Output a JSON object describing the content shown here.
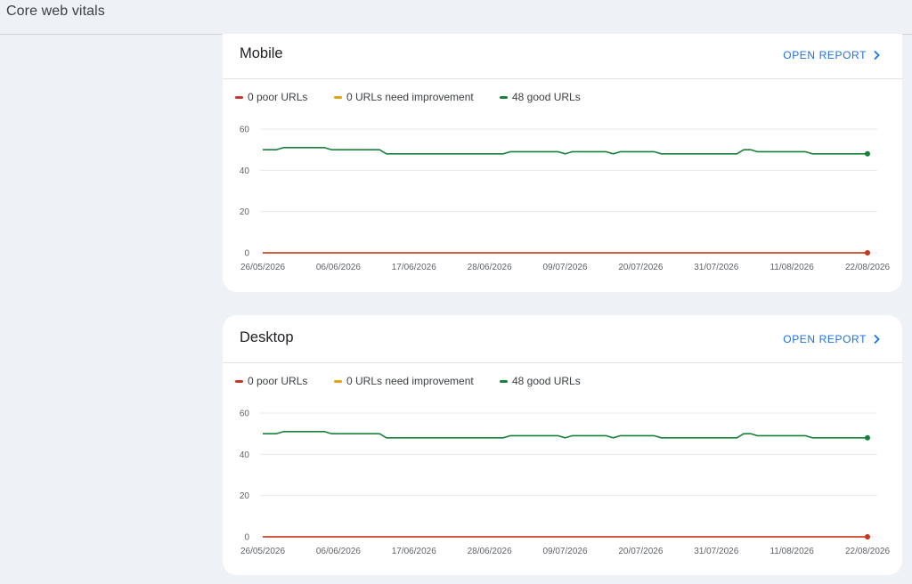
{
  "page": {
    "title": "Core web vitals"
  },
  "colors": {
    "poor": "#c5392b",
    "needs_improvement": "#e0a50c",
    "good": "#188038",
    "link": "#1a73e8"
  },
  "cards": [
    {
      "id": "mobile",
      "title": "Mobile",
      "open_report_label": "OPEN REPORT",
      "legend": [
        {
          "label": "0 poor URLs",
          "color": "#c5392b"
        },
        {
          "label": "0 URLs need improvement",
          "color": "#e0a50c"
        },
        {
          "label": "48 good URLs",
          "color": "#188038"
        }
      ]
    },
    {
      "id": "desktop",
      "title": "Desktop",
      "open_report_label": "OPEN REPORT",
      "legend": [
        {
          "label": "0 poor URLs",
          "color": "#c5392b"
        },
        {
          "label": "0 URLs need improvement",
          "color": "#e0a50c"
        },
        {
          "label": "48 good URLs",
          "color": "#188038"
        }
      ]
    }
  ],
  "chart_data": [
    {
      "type": "line",
      "ylim": [
        0,
        60
      ],
      "yticks": [
        0,
        20,
        40,
        60
      ],
      "xtick_labels": [
        "26/05/2026",
        "06/06/2026",
        "17/06/2026",
        "28/06/2026",
        "09/07/2026",
        "20/07/2026",
        "31/07/2026",
        "11/08/2026",
        "22/08/2026"
      ],
      "x": [
        "26/05/2026",
        "27/05/2026",
        "28/05/2026",
        "29/05/2026",
        "30/05/2026",
        "31/05/2026",
        "01/06/2026",
        "02/06/2026",
        "03/06/2026",
        "04/06/2026",
        "05/06/2026",
        "06/06/2026",
        "07/06/2026",
        "08/06/2026",
        "09/06/2026",
        "10/06/2026",
        "11/06/2026",
        "12/06/2026",
        "13/06/2026",
        "14/06/2026",
        "15/06/2026",
        "16/06/2026",
        "17/06/2026",
        "18/06/2026",
        "19/06/2026",
        "20/06/2026",
        "21/06/2026",
        "22/06/2026",
        "23/06/2026",
        "24/06/2026",
        "25/06/2026",
        "26/06/2026",
        "27/06/2026",
        "28/06/2026",
        "29/06/2026",
        "30/06/2026",
        "01/07/2026",
        "02/07/2026",
        "03/07/2026",
        "04/07/2026",
        "05/07/2026",
        "06/07/2026",
        "07/07/2026",
        "08/07/2026",
        "09/07/2026",
        "10/07/2026",
        "11/07/2026",
        "12/07/2026",
        "13/07/2026",
        "14/07/2026",
        "15/07/2026",
        "16/07/2026",
        "17/07/2026",
        "18/07/2026",
        "19/07/2026",
        "20/07/2026",
        "21/07/2026",
        "22/07/2026",
        "23/07/2026",
        "24/07/2026",
        "25/07/2026",
        "26/07/2026",
        "27/07/2026",
        "28/07/2026",
        "29/07/2026",
        "30/07/2026",
        "31/07/2026",
        "01/08/2026",
        "02/08/2026",
        "03/08/2026",
        "04/08/2026",
        "05/08/2026",
        "06/08/2026",
        "07/08/2026",
        "08/08/2026",
        "09/08/2026",
        "10/08/2026",
        "11/08/2026",
        "12/08/2026",
        "13/08/2026",
        "14/08/2026",
        "15/08/2026",
        "16/08/2026",
        "17/08/2026",
        "18/08/2026",
        "19/08/2026",
        "20/08/2026",
        "21/08/2026",
        "22/08/2026"
      ],
      "series": [
        {
          "name": "0 poor URLs",
          "color": "#c5392b",
          "values": [
            0,
            0,
            0,
            0,
            0,
            0,
            0,
            0,
            0,
            0,
            0,
            0,
            0,
            0,
            0,
            0,
            0,
            0,
            0,
            0,
            0,
            0,
            0,
            0,
            0,
            0,
            0,
            0,
            0,
            0,
            0,
            0,
            0,
            0,
            0,
            0,
            0,
            0,
            0,
            0,
            0,
            0,
            0,
            0,
            0,
            0,
            0,
            0,
            0,
            0,
            0,
            0,
            0,
            0,
            0,
            0,
            0,
            0,
            0,
            0,
            0,
            0,
            0,
            0,
            0,
            0,
            0,
            0,
            0,
            0,
            0,
            0,
            0,
            0,
            0,
            0,
            0,
            0,
            0,
            0,
            0,
            0,
            0,
            0,
            0,
            0,
            0,
            0,
            0
          ]
        },
        {
          "name": "0 URLs need improvement",
          "color": "#e0a50c",
          "values": [
            0,
            0,
            0,
            0,
            0,
            0,
            0,
            0,
            0,
            0,
            0,
            0,
            0,
            0,
            0,
            0,
            0,
            0,
            0,
            0,
            0,
            0,
            0,
            0,
            0,
            0,
            0,
            0,
            0,
            0,
            0,
            0,
            0,
            0,
            0,
            0,
            0,
            0,
            0,
            0,
            0,
            0,
            0,
            0,
            0,
            0,
            0,
            0,
            0,
            0,
            0,
            0,
            0,
            0,
            0,
            0,
            0,
            0,
            0,
            0,
            0,
            0,
            0,
            0,
            0,
            0,
            0,
            0,
            0,
            0,
            0,
            0,
            0,
            0,
            0,
            0,
            0,
            0,
            0,
            0,
            0,
            0,
            0,
            0,
            0,
            0,
            0,
            0,
            0
          ]
        },
        {
          "name": "48 good URLs",
          "color": "#188038",
          "values": [
            50,
            50,
            50,
            51,
            51,
            51,
            51,
            51,
            51,
            51,
            50,
            50,
            50,
            50,
            50,
            50,
            50,
            50,
            48,
            48,
            48,
            48,
            48,
            48,
            48,
            48,
            48,
            48,
            48,
            48,
            48,
            48,
            48,
            48,
            48,
            48,
            49,
            49,
            49,
            49,
            49,
            49,
            49,
            49,
            48,
            49,
            49,
            49,
            49,
            49,
            49,
            48,
            49,
            49,
            49,
            49,
            49,
            49,
            48,
            48,
            48,
            48,
            48,
            48,
            48,
            48,
            48,
            48,
            48,
            48,
            50,
            50,
            49,
            49,
            49,
            49,
            49,
            49,
            49,
            49,
            48,
            48,
            48,
            48,
            48,
            48,
            48,
            48,
            48
          ]
        }
      ]
    },
    {
      "type": "line",
      "ylim": [
        0,
        60
      ],
      "yticks": [
        0,
        20,
        40,
        60
      ],
      "xtick_labels": [
        "26/05/2026",
        "06/06/2026",
        "17/06/2026",
        "28/06/2026",
        "09/07/2026",
        "20/07/2026",
        "31/07/2026",
        "11/08/2026",
        "22/08/2026"
      ],
      "x": [
        "26/05/2026",
        "27/05/2026",
        "28/05/2026",
        "29/05/2026",
        "30/05/2026",
        "31/05/2026",
        "01/06/2026",
        "02/06/2026",
        "03/06/2026",
        "04/06/2026",
        "05/06/2026",
        "06/06/2026",
        "07/06/2026",
        "08/06/2026",
        "09/06/2026",
        "10/06/2026",
        "11/06/2026",
        "12/06/2026",
        "13/06/2026",
        "14/06/2026",
        "15/06/2026",
        "16/06/2026",
        "17/06/2026",
        "18/06/2026",
        "19/06/2026",
        "20/06/2026",
        "21/06/2026",
        "22/06/2026",
        "23/06/2026",
        "24/06/2026",
        "25/06/2026",
        "26/06/2026",
        "27/06/2026",
        "28/06/2026",
        "29/06/2026",
        "30/06/2026",
        "01/07/2026",
        "02/07/2026",
        "03/07/2026",
        "04/07/2026",
        "05/07/2026",
        "06/07/2026",
        "07/07/2026",
        "08/07/2026",
        "09/07/2026",
        "10/07/2026",
        "11/07/2026",
        "12/07/2026",
        "13/07/2026",
        "14/07/2026",
        "15/07/2026",
        "16/07/2026",
        "17/07/2026",
        "18/07/2026",
        "19/07/2026",
        "20/07/2026",
        "21/07/2026",
        "22/07/2026",
        "23/07/2026",
        "24/07/2026",
        "25/07/2026",
        "26/07/2026",
        "27/07/2026",
        "28/07/2026",
        "29/07/2026",
        "30/07/2026",
        "31/07/2026",
        "01/08/2026",
        "02/08/2026",
        "03/08/2026",
        "04/08/2026",
        "05/08/2026",
        "06/08/2026",
        "07/08/2026",
        "08/08/2026",
        "09/08/2026",
        "10/08/2026",
        "11/08/2026",
        "12/08/2026",
        "13/08/2026",
        "14/08/2026",
        "15/08/2026",
        "16/08/2026",
        "17/08/2026",
        "18/08/2026",
        "19/08/2026",
        "20/08/2026",
        "21/08/2026",
        "22/08/2026"
      ],
      "series": [
        {
          "name": "0 poor URLs",
          "color": "#c5392b",
          "values": [
            0,
            0,
            0,
            0,
            0,
            0,
            0,
            0,
            0,
            0,
            0,
            0,
            0,
            0,
            0,
            0,
            0,
            0,
            0,
            0,
            0,
            0,
            0,
            0,
            0,
            0,
            0,
            0,
            0,
            0,
            0,
            0,
            0,
            0,
            0,
            0,
            0,
            0,
            0,
            0,
            0,
            0,
            0,
            0,
            0,
            0,
            0,
            0,
            0,
            0,
            0,
            0,
            0,
            0,
            0,
            0,
            0,
            0,
            0,
            0,
            0,
            0,
            0,
            0,
            0,
            0,
            0,
            0,
            0,
            0,
            0,
            0,
            0,
            0,
            0,
            0,
            0,
            0,
            0,
            0,
            0,
            0,
            0,
            0,
            0,
            0,
            0,
            0,
            0
          ]
        },
        {
          "name": "0 URLs need improvement",
          "color": "#e0a50c",
          "values": [
            0,
            0,
            0,
            0,
            0,
            0,
            0,
            0,
            0,
            0,
            0,
            0,
            0,
            0,
            0,
            0,
            0,
            0,
            0,
            0,
            0,
            0,
            0,
            0,
            0,
            0,
            0,
            0,
            0,
            0,
            0,
            0,
            0,
            0,
            0,
            0,
            0,
            0,
            0,
            0,
            0,
            0,
            0,
            0,
            0,
            0,
            0,
            0,
            0,
            0,
            0,
            0,
            0,
            0,
            0,
            0,
            0,
            0,
            0,
            0,
            0,
            0,
            0,
            0,
            0,
            0,
            0,
            0,
            0,
            0,
            0,
            0,
            0,
            0,
            0,
            0,
            0,
            0,
            0,
            0,
            0,
            0,
            0,
            0,
            0,
            0,
            0,
            0,
            0
          ]
        },
        {
          "name": "48 good URLs",
          "color": "#188038",
          "values": [
            50,
            50,
            50,
            51,
            51,
            51,
            51,
            51,
            51,
            51,
            50,
            50,
            50,
            50,
            50,
            50,
            50,
            50,
            48,
            48,
            48,
            48,
            48,
            48,
            48,
            48,
            48,
            48,
            48,
            48,
            48,
            48,
            48,
            48,
            48,
            48,
            49,
            49,
            49,
            49,
            49,
            49,
            49,
            49,
            48,
            49,
            49,
            49,
            49,
            49,
            49,
            48,
            49,
            49,
            49,
            49,
            49,
            49,
            48,
            48,
            48,
            48,
            48,
            48,
            48,
            48,
            48,
            48,
            48,
            48,
            50,
            50,
            49,
            49,
            49,
            49,
            49,
            49,
            49,
            49,
            48,
            48,
            48,
            48,
            48,
            48,
            48,
            48,
            48
          ]
        }
      ]
    }
  ]
}
